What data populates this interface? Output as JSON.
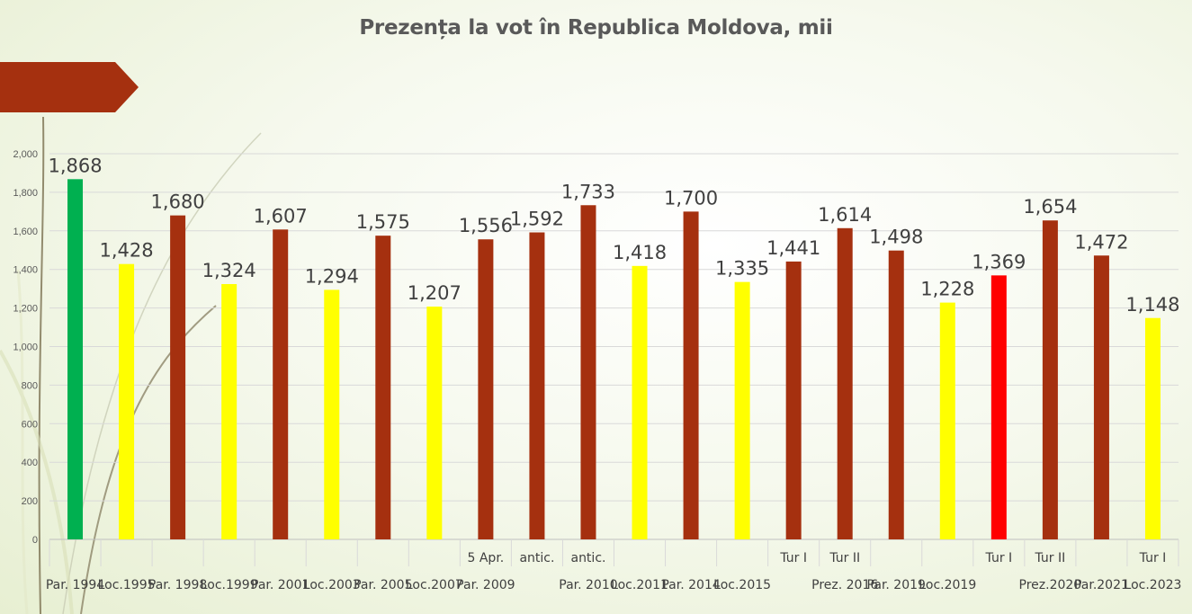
{
  "chart_data": {
    "type": "bar",
    "title": "Prezența la vot în Republica Moldova, mii",
    "xlabel": "",
    "ylabel": "",
    "ylim": [
      0,
      2000
    ],
    "yticks": [
      "0",
      "200",
      "400",
      "600",
      "800",
      "1,000",
      "1,200",
      "1,400",
      "1,600",
      "1,800",
      "2,000"
    ],
    "grid": true,
    "legend": "none",
    "colors": {
      "green": "#00b050",
      "yellow": "#ffff00",
      "brown": "#a5300f",
      "red": "#ff0000"
    },
    "bars": [
      {
        "value": 1868,
        "label": "1,868",
        "color": "green",
        "cat_bottom": "Par. 1994",
        "cat_top": ""
      },
      {
        "value": 1428,
        "label": "1,428",
        "color": "yellow",
        "cat_bottom": "Loc.1995",
        "cat_top": ""
      },
      {
        "value": 1680,
        "label": "1,680",
        "color": "brown",
        "cat_bottom": "Par. 1998",
        "cat_top": ""
      },
      {
        "value": 1324,
        "label": "1,324",
        "color": "yellow",
        "cat_bottom": "Loc.1999",
        "cat_top": ""
      },
      {
        "value": 1607,
        "label": "1,607",
        "color": "brown",
        "cat_bottom": "Par. 2001",
        "cat_top": ""
      },
      {
        "value": 1294,
        "label": "1,294",
        "color": "yellow",
        "cat_bottom": "Loc.2003",
        "cat_top": ""
      },
      {
        "value": 1575,
        "label": "1,575",
        "color": "brown",
        "cat_bottom": "Par. 2005",
        "cat_top": ""
      },
      {
        "value": 1207,
        "label": "1,207",
        "color": "yellow",
        "cat_bottom": "Loc.2007",
        "cat_top": ""
      },
      {
        "value": 1556,
        "label": "1,556",
        "color": "brown",
        "cat_bottom": "Par. 2009",
        "cat_top": "5 Apr."
      },
      {
        "value": 1592,
        "label": "1,592",
        "color": "brown",
        "cat_bottom": "",
        "cat_top": "antic."
      },
      {
        "value": 1733,
        "label": "1,733",
        "color": "brown",
        "cat_bottom": "Par. 2010",
        "cat_top": "antic."
      },
      {
        "value": 1418,
        "label": "1,418",
        "color": "yellow",
        "cat_bottom": "Loc.2011",
        "cat_top": ""
      },
      {
        "value": 1700,
        "label": "1,700",
        "color": "brown",
        "cat_bottom": "Par. 2014",
        "cat_top": ""
      },
      {
        "value": 1335,
        "label": "1,335",
        "color": "yellow",
        "cat_bottom": "Loc.2015",
        "cat_top": ""
      },
      {
        "value": 1441,
        "label": "1,441",
        "color": "brown",
        "cat_bottom": "",
        "cat_top": "Tur I"
      },
      {
        "value": 1614,
        "label": "1,614",
        "color": "brown",
        "cat_bottom": "Prez. 2016",
        "cat_top": "Tur II"
      },
      {
        "value": 1498,
        "label": "1,498",
        "color": "brown",
        "cat_bottom": "Par. 2019",
        "cat_top": ""
      },
      {
        "value": 1228,
        "label": "1,228",
        "color": "yellow",
        "cat_bottom": "Loc.2019",
        "cat_top": ""
      },
      {
        "value": 1369,
        "label": "1,369",
        "color": "red",
        "cat_bottom": "",
        "cat_top": "Tur I"
      },
      {
        "value": 1654,
        "label": "1,654",
        "color": "brown",
        "cat_bottom": "Prez.2020",
        "cat_top": "Tur II"
      },
      {
        "value": 1472,
        "label": "1,472",
        "color": "brown",
        "cat_bottom": "Par.2021",
        "cat_top": ""
      },
      {
        "value": 1148,
        "label": "1,148",
        "color": "yellow",
        "cat_bottom": "Loc.2023",
        "cat_top": "Tur I"
      }
    ]
  }
}
